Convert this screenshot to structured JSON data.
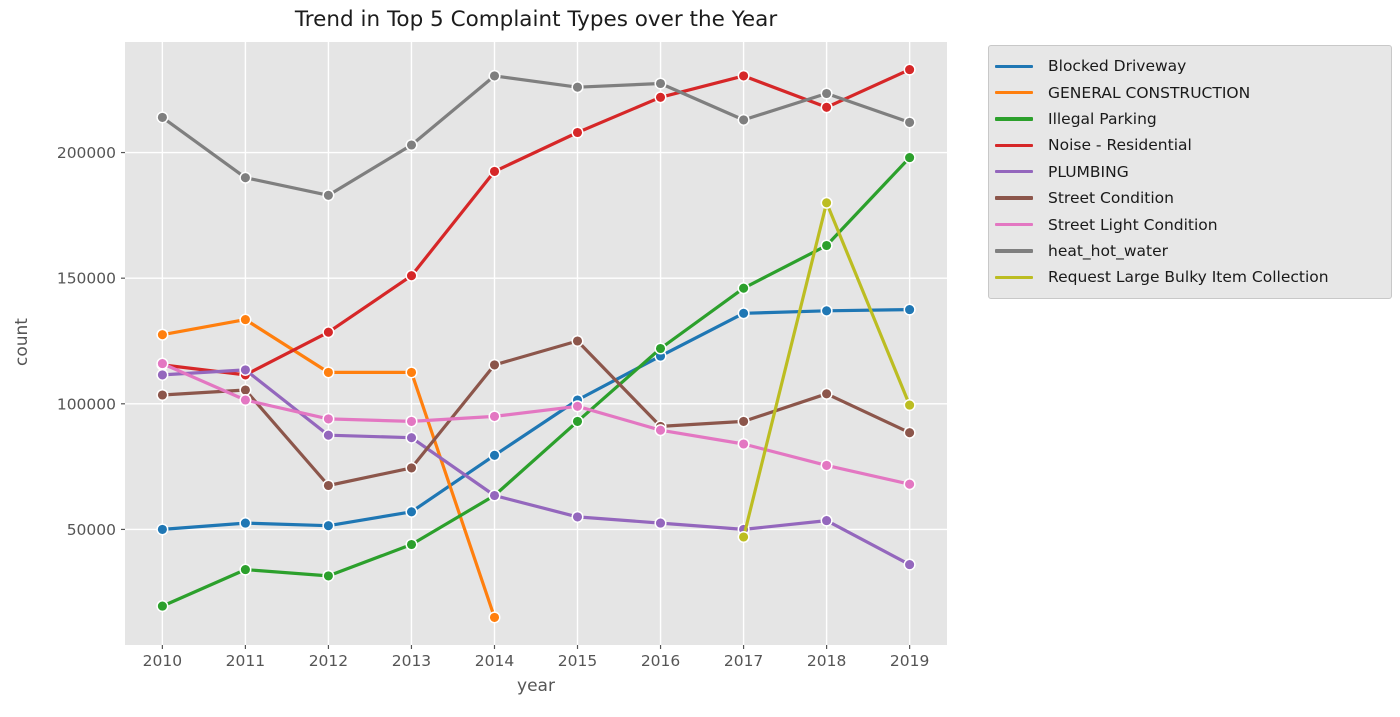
{
  "figure": {
    "title": "Trend in Top 5 Complaint Types over the Year"
  },
  "chart_data": {
    "type": "line",
    "title": "Trend in Top 5 Complaint Types over the Year",
    "xlabel": "year",
    "ylabel": "count",
    "x": [
      2010,
      2011,
      2012,
      2013,
      2014,
      2015,
      2016,
      2017,
      2018,
      2019
    ],
    "x_tick_labels": [
      "2010",
      "2011",
      "2012",
      "2013",
      "2014",
      "2015",
      "2016",
      "2017",
      "2018",
      "2019"
    ],
    "y_ticks": [
      50000,
      100000,
      150000,
      200000
    ],
    "y_tick_labels": [
      "50000",
      "100000",
      "150000",
      "200000"
    ],
    "xlim": [
      2009.55,
      2019.45
    ],
    "ylim": [
      4000,
      244000
    ],
    "grid": true,
    "plot_background": "#e5e5e5",
    "gridline_color": "#ffffff",
    "tick_text_color": "#555555",
    "legend_position": "outside-top-right",
    "series": [
      {
        "name": "Blocked Driveway",
        "color": "#1f77b4",
        "values": [
          50000,
          52500,
          51500,
          57000,
          79500,
          101500,
          119000,
          136000,
          137000,
          137500
        ]
      },
      {
        "name": "GENERAL CONSTRUCTION",
        "color": "#ff7f0e",
        "values": [
          127500,
          133500,
          112500,
          112500,
          15000,
          null,
          null,
          null,
          null,
          null
        ]
      },
      {
        "name": "Illegal Parking",
        "color": "#2ca02c",
        "values": [
          19500,
          34000,
          31500,
          44000,
          63500,
          93000,
          122000,
          146000,
          163000,
          198000
        ]
      },
      {
        "name": "Noise - Residential",
        "color": "#d62728",
        "values": [
          115500,
          111500,
          128500,
          151000,
          192500,
          208000,
          222000,
          230500,
          218000,
          233000
        ]
      },
      {
        "name": "PLUMBING",
        "color": "#9467bd",
        "values": [
          111500,
          113500,
          87500,
          86500,
          63500,
          55000,
          52500,
          50000,
          53500,
          36000
        ]
      },
      {
        "name": "Street Condition",
        "color": "#8c564b",
        "values": [
          103500,
          105500,
          67500,
          74500,
          115500,
          125000,
          91000,
          93000,
          104000,
          88500
        ]
      },
      {
        "name": "Street Light Condition",
        "color": "#e377c2",
        "values": [
          116000,
          101500,
          94000,
          93000,
          95000,
          99000,
          89500,
          84000,
          75500,
          68000
        ]
      },
      {
        "name": "heat_hot_water",
        "color": "#7f7f7f",
        "values": [
          214000,
          190000,
          183000,
          203000,
          230500,
          226000,
          227500,
          213000,
          223500,
          212000
        ]
      },
      {
        "name": "Request Large Bulky Item Collection",
        "color": "#bcbd22",
        "values": [
          null,
          null,
          null,
          null,
          null,
          null,
          null,
          47000,
          180000,
          99500
        ]
      }
    ]
  }
}
